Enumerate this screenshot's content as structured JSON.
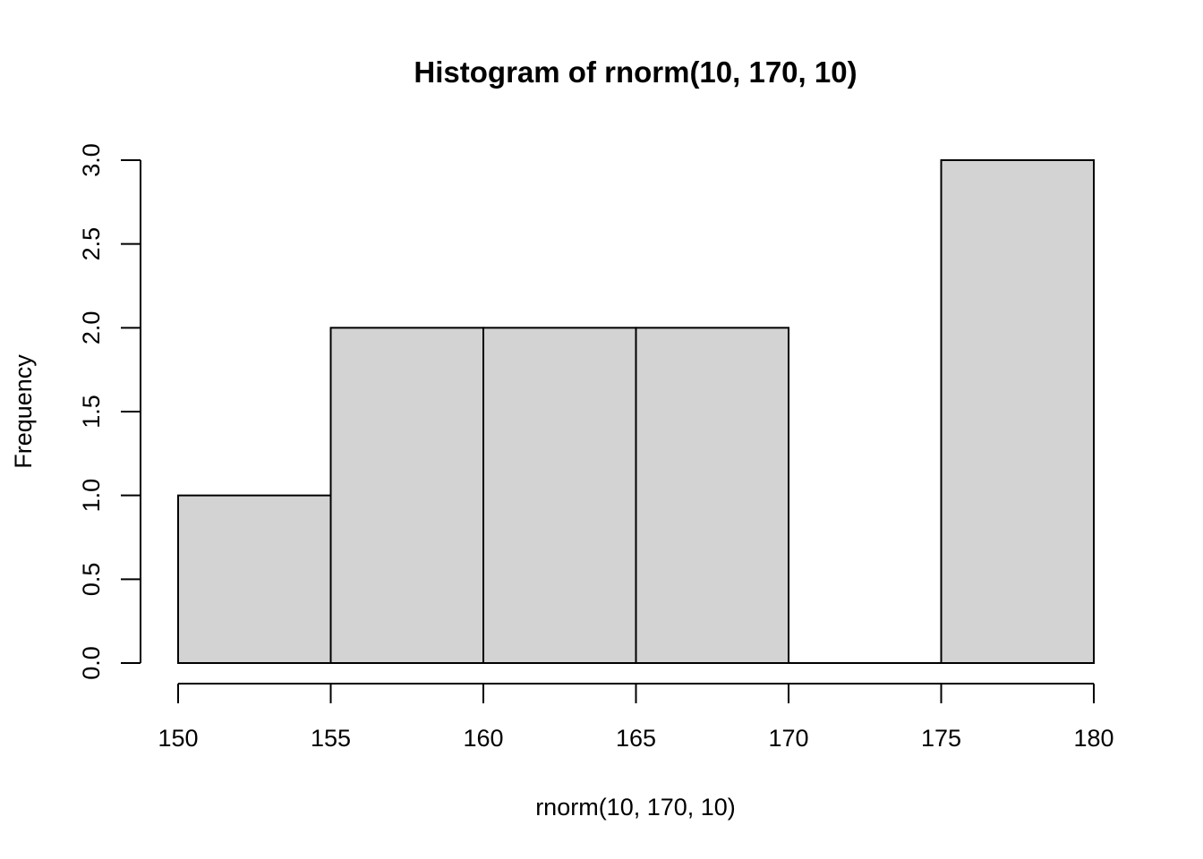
{
  "chart_data": {
    "type": "bar",
    "subtype": "histogram",
    "title": "Histogram of rnorm(10, 170, 10)",
    "xlabel": "rnorm(10, 170, 10)",
    "ylabel": "Frequency",
    "bins": [
      {
        "from": 150,
        "to": 155,
        "count": 1
      },
      {
        "from": 155,
        "to": 160,
        "count": 2
      },
      {
        "from": 160,
        "to": 165,
        "count": 2
      },
      {
        "from": 165,
        "to": 170,
        "count": 2
      },
      {
        "from": 170,
        "to": 175,
        "count": 0
      },
      {
        "from": 175,
        "to": 180,
        "count": 3
      }
    ],
    "xlim": [
      150,
      180
    ],
    "ylim": [
      0,
      3
    ],
    "xticks": [
      "150",
      "155",
      "160",
      "165",
      "170",
      "175",
      "180"
    ],
    "yticks": [
      "0.0",
      "0.5",
      "1.0",
      "1.5",
      "2.0",
      "2.5",
      "3.0"
    ],
    "bar_color": "#d3d3d3",
    "grid": false
  }
}
